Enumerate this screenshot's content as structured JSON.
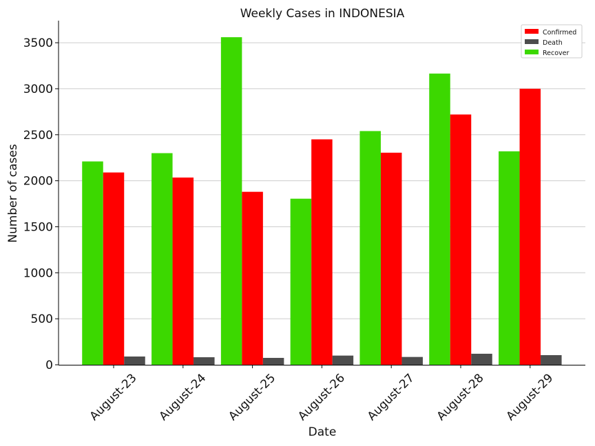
{
  "chart_data": {
    "type": "bar",
    "title": "Weekly Cases in INDONESIA",
    "xlabel": "Date",
    "ylabel": "Number of cases",
    "categories": [
      "August-23",
      "August-24",
      "August-25",
      "August-26",
      "August-27",
      "August-28",
      "August-29"
    ],
    "series": [
      {
        "name": "Recover",
        "color": "#3cd800",
        "values": [
          2210,
          2300,
          3560,
          1805,
          2540,
          3165,
          2320
        ]
      },
      {
        "name": "Confirmed",
        "color": "#ff0000",
        "values": [
          2090,
          2035,
          1880,
          2450,
          2305,
          2720,
          3000
        ]
      },
      {
        "name": "Death",
        "color": "#4d4d4d",
        "values": [
          90,
          82,
          75,
          100,
          85,
          120,
          105
        ]
      }
    ],
    "legend_order": [
      "Confirmed",
      "Death",
      "Recover"
    ],
    "legend_position": "top-right",
    "ylim": [
      0,
      3740
    ],
    "yticks": [
      0,
      500,
      1000,
      1500,
      2000,
      2500,
      3000,
      3500
    ],
    "grid": "horizontal"
  }
}
